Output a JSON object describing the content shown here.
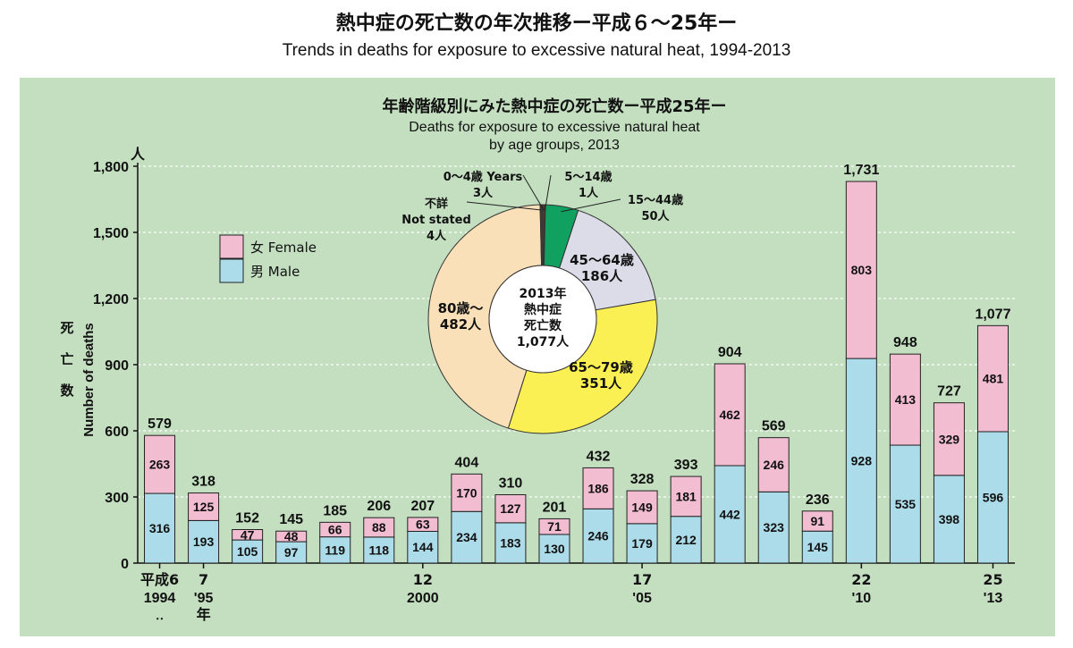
{
  "title": "熱中症の死亡数の年次推移ー平成６～25年ー",
  "subtitle": "Trends in deaths for exposure to excessive natural heat, 1994-2013",
  "colors": {
    "panel_bg": "#c3dfc0",
    "female": "#f2bdd0",
    "male": "#acdce9",
    "pie_0_4": "#6b3b2a",
    "pie_5_14": "#c8553d",
    "pie_15_44": "#10a060",
    "pie_45_64": "#dcdce8",
    "pie_65_79": "#faf054",
    "pie_80": "#fae0b8",
    "pie_unknown": "#3c3c3c"
  },
  "chart_data": [
    {
      "type": "bar",
      "stacked": true,
      "yunit": "人",
      "ylabel_jp": "死亡数",
      "ylabel": "Number of deaths",
      "ylim": [
        0,
        1800
      ],
      "yticks": [
        0,
        300,
        600,
        900,
        1200,
        1500,
        1800
      ],
      "ytick_labels": [
        "0",
        "300",
        "600",
        "900",
        "1,200",
        "1,500",
        "1,800"
      ],
      "grid": true,
      "categories": [
        "1994",
        "1995",
        "1996",
        "1997",
        "1998",
        "1999",
        "2000",
        "2001",
        "2002",
        "2003",
        "2004",
        "2005",
        "2006",
        "2007",
        "2008",
        "2009",
        "2010",
        "2011",
        "2012",
        "2013"
      ],
      "series": [
        {
          "name": "男 Male",
          "values": [
            316,
            193,
            105,
            97,
            119,
            118,
            144,
            234,
            183,
            130,
            246,
            179,
            212,
            442,
            323,
            145,
            928,
            535,
            398,
            596
          ]
        },
        {
          "name": "女 Female",
          "values": [
            263,
            125,
            47,
            48,
            66,
            88,
            63,
            170,
            127,
            71,
            186,
            149,
            181,
            462,
            246,
            91,
            803,
            413,
            329,
            481
          ]
        }
      ],
      "totals": [
        "579",
        "318",
        "152",
        "145",
        "185",
        "206",
        "207",
        "404",
        "310",
        "201",
        "432",
        "328",
        "393",
        "904",
        "569",
        "236",
        "1,731",
        "948",
        "727",
        "1,077"
      ],
      "legend_position": "top-left",
      "x_tick_labels": [
        {
          "index": 0,
          "line1": "平成6",
          "line2": "1994"
        },
        {
          "index": 1,
          "line1": "7",
          "line2": "'95"
        },
        {
          "index": 6,
          "line1": "12",
          "line2": "2000"
        },
        {
          "index": 11,
          "line1": "17",
          "line2": "'05"
        },
        {
          "index": 16,
          "line1": "22",
          "line2": "'10"
        },
        {
          "index": 19,
          "line1": "25",
          "line2": "'13"
        }
      ],
      "x_unit_label": "年",
      "x_dots": "‥"
    },
    {
      "type": "pie",
      "title_jp": "年齢階級別にみた熱中症の死亡数ー平成25年ー",
      "title_en_line1": "Deaths for exposure to excessive natural heat",
      "title_en_line2": "by age groups, 2013",
      "center_lines": [
        "2013年",
        "熱中症",
        "死亡数",
        "1,077人"
      ],
      "total": 1077,
      "slices": [
        {
          "key": "pie_0_4",
          "value": 3,
          "label_lines": [
            "0～4歳 Years",
            "3人"
          ]
        },
        {
          "key": "pie_5_14",
          "value": 1,
          "label_lines": [
            "5～14歳",
            "1人"
          ]
        },
        {
          "key": "pie_15_44",
          "value": 50,
          "label_lines": [
            "15～44歳",
            "50人"
          ]
        },
        {
          "key": "pie_45_64",
          "value": 186,
          "label_lines": [
            "45～64歳",
            "186人"
          ]
        },
        {
          "key": "pie_65_79",
          "value": 351,
          "label_lines": [
            "65～79歳",
            "351人"
          ]
        },
        {
          "key": "pie_80",
          "value": 482,
          "label_lines": [
            "80歳～",
            "482人"
          ]
        },
        {
          "key": "pie_unknown",
          "value": 4,
          "label_lines": [
            "不詳",
            "Not stated",
            "4人"
          ]
        }
      ]
    }
  ]
}
